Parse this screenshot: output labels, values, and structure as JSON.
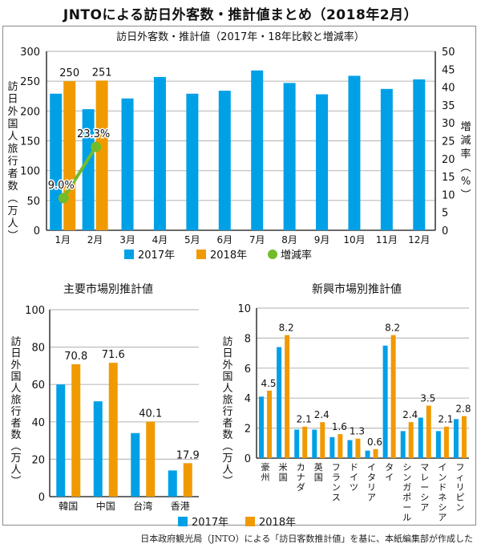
{
  "page": {
    "title": "JNTOによる訪日外客数・推計値まとめ（2018年2月）",
    "source_note": "日本政府観光局（JNTO）による「訪日客数推計値」を基に、本紙編集部が作成した"
  },
  "colors": {
    "y2017": "#00a0e6",
    "y2018": "#f09a00",
    "rate": "#72bb2a",
    "grid": "#bdbdbd",
    "axis": "#111111"
  },
  "chart_data": [
    {
      "type": "bar",
      "id": "monthly",
      "title": "訪日外客数・推計値（2017年・18年比較と増減率）",
      "xlabel": "",
      "ylabel": "訪日外国人旅行者数（万人）",
      "y2label": "増減率（%）",
      "ylim": [
        0,
        300
      ],
      "yticks": [
        0,
        50,
        100,
        150,
        200,
        250,
        300
      ],
      "y2lim": [
        0,
        50
      ],
      "y2ticks": [
        0,
        5,
        10,
        15,
        20,
        25,
        30,
        35,
        40,
        45,
        50
      ],
      "grid": true,
      "categories": [
        "1月",
        "2月",
        "3月",
        "4月",
        "5月",
        "6月",
        "7月",
        "8月",
        "9月",
        "10月",
        "11月",
        "12月"
      ],
      "series": [
        {
          "name": "2017年",
          "kind": "bar",
          "values": [
            229,
            203,
            221,
            257,
            229,
            234,
            268,
            247,
            228,
            259,
            237,
            253
          ],
          "labels": [
            null,
            null,
            null,
            null,
            null,
            null,
            null,
            null,
            null,
            null,
            null,
            null
          ]
        },
        {
          "name": "2018年",
          "kind": "bar",
          "values": [
            250,
            251,
            null,
            null,
            null,
            null,
            null,
            null,
            null,
            null,
            null,
            null
          ],
          "labels": [
            "250",
            "251",
            null,
            null,
            null,
            null,
            null,
            null,
            null,
            null,
            null,
            null
          ]
        },
        {
          "name": "増減率",
          "kind": "line",
          "axis": "right",
          "values": [
            9.0,
            23.3,
            null,
            null,
            null,
            null,
            null,
            null,
            null,
            null,
            null,
            null
          ],
          "labels": [
            "9.0%",
            "23.3%",
            null,
            null,
            null,
            null,
            null,
            null,
            null,
            null,
            null,
            null
          ]
        }
      ],
      "legend": {
        "placement": "bottom",
        "items": [
          "2017年",
          "2018年",
          "増減率"
        ]
      }
    },
    {
      "type": "bar",
      "id": "major",
      "title": "主要市場別推計値",
      "ylabel": "訪日外国人旅行者数（万人）",
      "ylim": [
        0,
        100
      ],
      "yticks": [
        0,
        20,
        40,
        60,
        80,
        100
      ],
      "grid": true,
      "categories": [
        "韓国",
        "中国",
        "台湾",
        "香港"
      ],
      "series": [
        {
          "name": "2017年",
          "values": [
            60,
            51,
            34,
            14
          ],
          "labels": [
            null,
            null,
            null,
            null
          ]
        },
        {
          "name": "2018年",
          "values": [
            70.8,
            71.6,
            40.1,
            17.9
          ],
          "labels": [
            "70.8",
            "71.6",
            "40.1",
            "17.9"
          ]
        }
      ]
    },
    {
      "type": "bar",
      "id": "emerging",
      "title": "新興市場別推計値",
      "ylabel": "訪日外国人旅行者数（万人）",
      "ylim": [
        0,
        10
      ],
      "yticks": [
        0,
        2,
        4,
        6,
        8,
        10
      ],
      "grid": true,
      "categories": [
        "豪州",
        "米国",
        "カナダ",
        "英国",
        "フランス",
        "ドイツ",
        "イタリア",
        "タイ",
        "シンガポール",
        "マレーシア",
        "インドネシア",
        "フィリピン"
      ],
      "series": [
        {
          "name": "2017年",
          "values": [
            4.1,
            7.4,
            1.9,
            1.9,
            1.4,
            1.2,
            0.5,
            7.5,
            1.8,
            2.7,
            1.8,
            2.6
          ],
          "labels": [
            null,
            null,
            null,
            null,
            null,
            null,
            null,
            null,
            null,
            null,
            null,
            null
          ]
        },
        {
          "name": "2018年",
          "values": [
            4.5,
            8.2,
            2.1,
            2.4,
            1.6,
            1.3,
            0.6,
            8.2,
            2.4,
            3.5,
            2.1,
            2.8
          ],
          "labels": [
            "4.5",
            "8.2",
            "2.1",
            "2.4",
            "1.6",
            "1.3",
            "0.6",
            "8.2",
            "2.4",
            "3.5",
            "2.1",
            "2.8"
          ]
        }
      ],
      "legend": {
        "placement": "bottom",
        "items": [
          "2017年",
          "2018年"
        ]
      }
    }
  ]
}
